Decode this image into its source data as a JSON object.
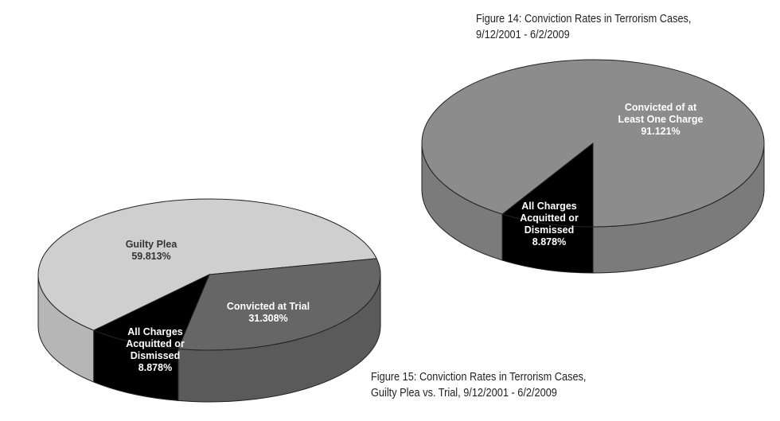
{
  "chart_data": [
    {
      "type": "pie",
      "title": "Figure 14: Conviction Rates in Terrorism Cases,",
      "subtitle": "9/12/2001 - 6/2/2009",
      "slices": [
        {
          "label": "Convicted of at Least One Charge",
          "label_lines": [
            "Convicted of at",
            "Least One Charge"
          ],
          "value": 91.121,
          "value_text": "91.121%",
          "color": "#8c8c8c",
          "label_color": "#ffffff"
        },
        {
          "label": "All Charges Acquitted or Dismissed",
          "label_lines": [
            "All Charges",
            "Acquitted or",
            "Dismissed"
          ],
          "value": 8.878,
          "value_text": "8.878%",
          "color": "#000000",
          "label_color": "#ffffff"
        }
      ]
    },
    {
      "type": "pie",
      "title": "Figure 15: Conviction Rates in Terrorism Cases,",
      "subtitle": "Guilty Plea vs. Trial, 9/12/2001 - 6/2/2009",
      "slices": [
        {
          "label": "Guilty Plea",
          "label_lines": [
            "Guilty Plea"
          ],
          "value": 59.813,
          "value_text": "59.813%",
          "color": "#cfcfcf",
          "label_color": "#333333"
        },
        {
          "label": "Convicted at Trial",
          "label_lines": [
            "Convicted at Trial"
          ],
          "value": 31.308,
          "value_text": "31.308%",
          "color": "#666666",
          "label_color": "#ffffff"
        },
        {
          "label": "All Charges Acquitted or Dismissed",
          "label_lines": [
            "All Charges",
            "Acquitted or",
            "Dismissed"
          ],
          "value": 8.878,
          "value_text": "8.878%",
          "color": "#000000",
          "label_color": "#ffffff"
        }
      ]
    }
  ]
}
